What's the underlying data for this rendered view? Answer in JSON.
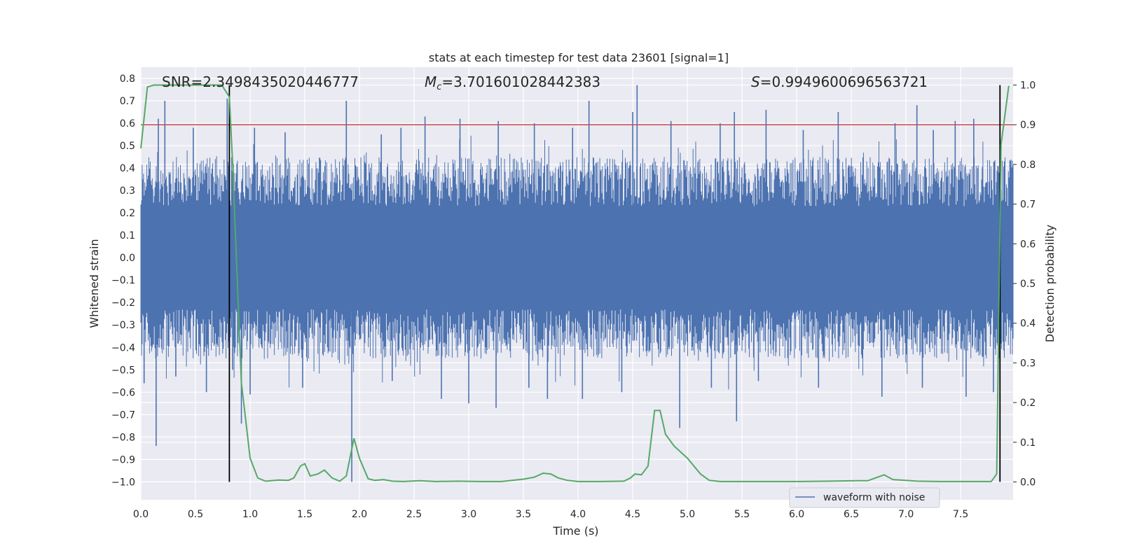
{
  "chart_data": {
    "type": "line",
    "title": "stats at each timestep for test data 23601 [signal=1]",
    "xlabel": "Time (s)",
    "ylabel": "Whitened strain",
    "ylabel_right": "Detection probability",
    "xlim": [
      0.0,
      7.98
    ],
    "ylim": [
      -1.08,
      0.85
    ],
    "ylim_right": [
      -0.045,
      1.045
    ],
    "x_ticks": [
      "0.0",
      "0.5",
      "1.0",
      "1.5",
      "2.0",
      "2.5",
      "3.0",
      "3.5",
      "4.0",
      "4.5",
      "5.0",
      "5.5",
      "6.0",
      "6.5",
      "7.0",
      "7.5"
    ],
    "y_ticks": [
      "0.8",
      "0.7",
      "0.6",
      "0.5",
      "0.4",
      "0.3",
      "0.2",
      "0.1",
      "0.0",
      "-0.1",
      "-0.2",
      "-0.3",
      "-0.4",
      "-0.5",
      "-0.6",
      "-0.7",
      "-0.8",
      "-0.9",
      "-1.0"
    ],
    "y_ticks_right": [
      "1.0",
      "0.9",
      "0.8",
      "0.7",
      "0.6",
      "0.5",
      "0.4",
      "0.3",
      "0.2",
      "0.1",
      "0.0"
    ],
    "grid": true,
    "legend": {
      "placement": "lower-right",
      "entries": [
        "waveform with noise"
      ]
    },
    "annotations": {
      "snr": "SNR=2.3498435020446777",
      "mc_symbol": "M",
      "mc_sub": "c",
      "mc_value": "=3.701601028442383",
      "s_symbol": "S",
      "s_value": "=0.9949600696563721"
    },
    "threshold_line": {
      "y_right": 0.9,
      "color": "#c44e52"
    },
    "vertical_lines": [
      {
        "x": 0.81,
        "y_start": -1.0,
        "y_end": 0.77
      },
      {
        "x": 7.86,
        "y_start": -1.0,
        "y_end": 0.77
      }
    ],
    "series": [
      {
        "name": "waveform with noise",
        "color": "#4c72b0",
        "duration_s": 7.98,
        "band": [
          -0.23,
          0.23
        ],
        "spike_peaks": [
          {
            "x": 0.16,
            "y": 0.62
          },
          {
            "x": 0.22,
            "y": 0.7
          },
          {
            "x": 0.48,
            "y": 0.58
          },
          {
            "x": 0.79,
            "y": 0.71
          },
          {
            "x": 1.04,
            "y": 0.58
          },
          {
            "x": 1.32,
            "y": 0.56
          },
          {
            "x": 1.88,
            "y": 0.7
          },
          {
            "x": 2.2,
            "y": 0.55
          },
          {
            "x": 2.38,
            "y": 0.58
          },
          {
            "x": 2.6,
            "y": 0.63
          },
          {
            "x": 2.92,
            "y": 0.62
          },
          {
            "x": 3.27,
            "y": 0.61
          },
          {
            "x": 3.6,
            "y": 0.6
          },
          {
            "x": 3.95,
            "y": 0.58
          },
          {
            "x": 4.1,
            "y": 0.7
          },
          {
            "x": 4.5,
            "y": 0.65
          },
          {
            "x": 4.54,
            "y": 0.77
          },
          {
            "x": 4.85,
            "y": 0.61
          },
          {
            "x": 5.3,
            "y": 0.6
          },
          {
            "x": 5.43,
            "y": 0.65
          },
          {
            "x": 5.72,
            "y": 0.66
          },
          {
            "x": 6.06,
            "y": 0.57
          },
          {
            "x": 6.38,
            "y": 0.65
          },
          {
            "x": 6.9,
            "y": 0.6
          },
          {
            "x": 7.1,
            "y": 0.68
          },
          {
            "x": 7.25,
            "y": 0.57
          },
          {
            "x": 7.45,
            "y": 0.61
          },
          {
            "x": 7.62,
            "y": 0.62
          }
        ],
        "spike_troughs": [
          {
            "x": 0.03,
            "y": -0.56
          },
          {
            "x": 0.14,
            "y": -0.84
          },
          {
            "x": 0.32,
            "y": -0.53
          },
          {
            "x": 0.6,
            "y": -0.6
          },
          {
            "x": 0.84,
            "y": -0.5
          },
          {
            "x": 0.92,
            "y": -0.74
          },
          {
            "x": 1.0,
            "y": -0.61
          },
          {
            "x": 1.48,
            "y": -0.58
          },
          {
            "x": 1.93,
            "y": -1.0
          },
          {
            "x": 2.3,
            "y": -0.55
          },
          {
            "x": 2.75,
            "y": -0.63
          },
          {
            "x": 3.0,
            "y": -0.65
          },
          {
            "x": 3.25,
            "y": -0.67
          },
          {
            "x": 3.55,
            "y": -0.58
          },
          {
            "x": 3.72,
            "y": -0.63
          },
          {
            "x": 4.04,
            "y": -0.63
          },
          {
            "x": 4.4,
            "y": -0.6
          },
          {
            "x": 4.93,
            "y": -0.76
          },
          {
            "x": 5.22,
            "y": -0.58
          },
          {
            "x": 5.45,
            "y": -0.73
          },
          {
            "x": 5.65,
            "y": -0.55
          },
          {
            "x": 6.2,
            "y": -0.58
          },
          {
            "x": 6.78,
            "y": -0.62
          },
          {
            "x": 7.15,
            "y": -0.58
          },
          {
            "x": 7.55,
            "y": -0.62
          },
          {
            "x": 7.8,
            "y": -0.6
          }
        ]
      },
      {
        "name": "",
        "color": "#55a868",
        "axis": "right",
        "x": [
          0.0,
          0.06,
          0.12,
          0.3,
          0.5,
          0.74,
          0.81,
          0.84,
          0.92,
          1.0,
          1.07,
          1.14,
          1.26,
          1.35,
          1.4,
          1.46,
          1.5,
          1.55,
          1.62,
          1.68,
          1.75,
          1.82,
          1.88,
          1.95,
          2.0,
          2.08,
          2.14,
          2.22,
          2.3,
          2.4,
          2.55,
          2.7,
          2.9,
          3.1,
          3.3,
          3.5,
          3.6,
          3.68,
          3.75,
          3.82,
          3.9,
          4.0,
          4.2,
          4.42,
          4.48,
          4.52,
          4.58,
          4.64,
          4.7,
          4.75,
          4.8,
          4.88,
          5.0,
          5.12,
          5.2,
          5.3,
          5.6,
          6.0,
          6.3,
          6.55,
          6.65,
          6.72,
          6.8,
          6.88,
          6.95,
          7.1,
          7.3,
          7.55,
          7.72,
          7.78,
          7.83,
          7.87,
          7.94
        ],
        "y": [
          0.84,
          0.995,
          1.0,
          1.0,
          1.0,
          1.0,
          0.97,
          0.8,
          0.25,
          0.06,
          0.01,
          0.002,
          0.005,
          0.004,
          0.01,
          0.04,
          0.046,
          0.015,
          0.02,
          0.03,
          0.01,
          0.002,
          0.015,
          0.11,
          0.06,
          0.008,
          0.004,
          0.006,
          0.002,
          0.001,
          0.003,
          0.001,
          0.002,
          0.001,
          0.001,
          0.007,
          0.012,
          0.022,
          0.02,
          0.01,
          0.004,
          0.001,
          0.001,
          0.002,
          0.01,
          0.02,
          0.018,
          0.04,
          0.18,
          0.18,
          0.12,
          0.09,
          0.06,
          0.02,
          0.004,
          0.001,
          0.001,
          0.001,
          0.002,
          0.003,
          0.003,
          0.01,
          0.018,
          0.006,
          0.005,
          0.002,
          0.001,
          0.001,
          0.001,
          0.001,
          0.02,
          0.85,
          0.998
        ]
      }
    ]
  }
}
